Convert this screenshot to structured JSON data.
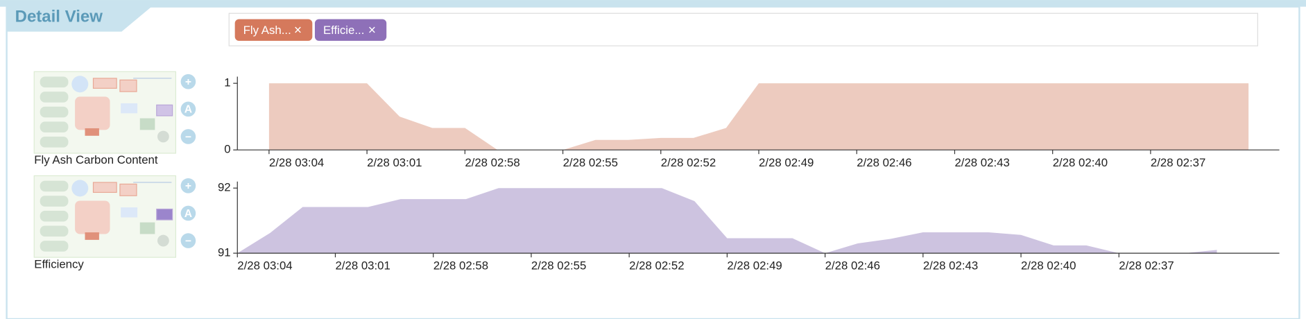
{
  "header": {
    "title": "Detail View"
  },
  "tags": [
    {
      "label": "Fly Ash...",
      "close": "×",
      "color": "#d5795c"
    },
    {
      "label": "Efficie...",
      "close": "×",
      "color": "#8e70b8"
    }
  ],
  "buttons": [
    "+",
    "A",
    "−"
  ],
  "chart_data": [
    {
      "type": "area",
      "label": "Fly Ash Carbon Content",
      "color": "#edcbbf",
      "categories": [
        "2/28 03:04",
        null,
        null,
        "2/28 03:01",
        null,
        null,
        "2/28 02:58",
        null,
        null,
        "2/28 02:55",
        null,
        null,
        "2/28 02:52",
        null,
        null,
        "2/28 02:49",
        null,
        null,
        "2/28 02:46",
        null,
        null,
        "2/28 02:43",
        null,
        null,
        "2/28 02:40",
        null,
        null,
        "2/28 02:37",
        null,
        null,
        null
      ],
      "values": [
        1,
        1,
        1,
        1,
        0.5,
        0.33,
        0.33,
        0,
        0,
        0,
        0.15,
        0.15,
        0.18,
        0.18,
        0.33,
        1,
        1,
        1,
        1,
        1,
        1,
        1,
        1,
        1,
        1,
        1,
        1,
        1,
        1,
        1,
        1
      ],
      "ylim": [
        0,
        1.1
      ],
      "yticks": [
        0,
        1
      ]
    },
    {
      "type": "area",
      "label": "Efficiency",
      "color": "#cdc3e0",
      "categories": [
        "2/28 03:04",
        null,
        null,
        "2/28 03:01",
        null,
        null,
        "2/28 02:58",
        null,
        null,
        "2/28 02:55",
        null,
        null,
        "2/28 02:52",
        null,
        null,
        "2/28 02:49",
        null,
        null,
        "2/28 02:46",
        null,
        null,
        "2/28 02:43",
        null,
        null,
        "2/28 02:40",
        null,
        null,
        "2/28 02:37",
        null,
        null,
        null
      ],
      "values": [
        91,
        91.31,
        91.71,
        91.71,
        91.71,
        91.83,
        91.83,
        91.83,
        92,
        92,
        92,
        92,
        92,
        92,
        91.8,
        91.23,
        91.23,
        91.23,
        91,
        91.15,
        91.22,
        91.32,
        91.32,
        91.32,
        91.28,
        91.12,
        91.12,
        91,
        91,
        91,
        91.05
      ],
      "ylim": [
        91,
        92.1
      ],
      "yticks": [
        91,
        92
      ]
    }
  ]
}
